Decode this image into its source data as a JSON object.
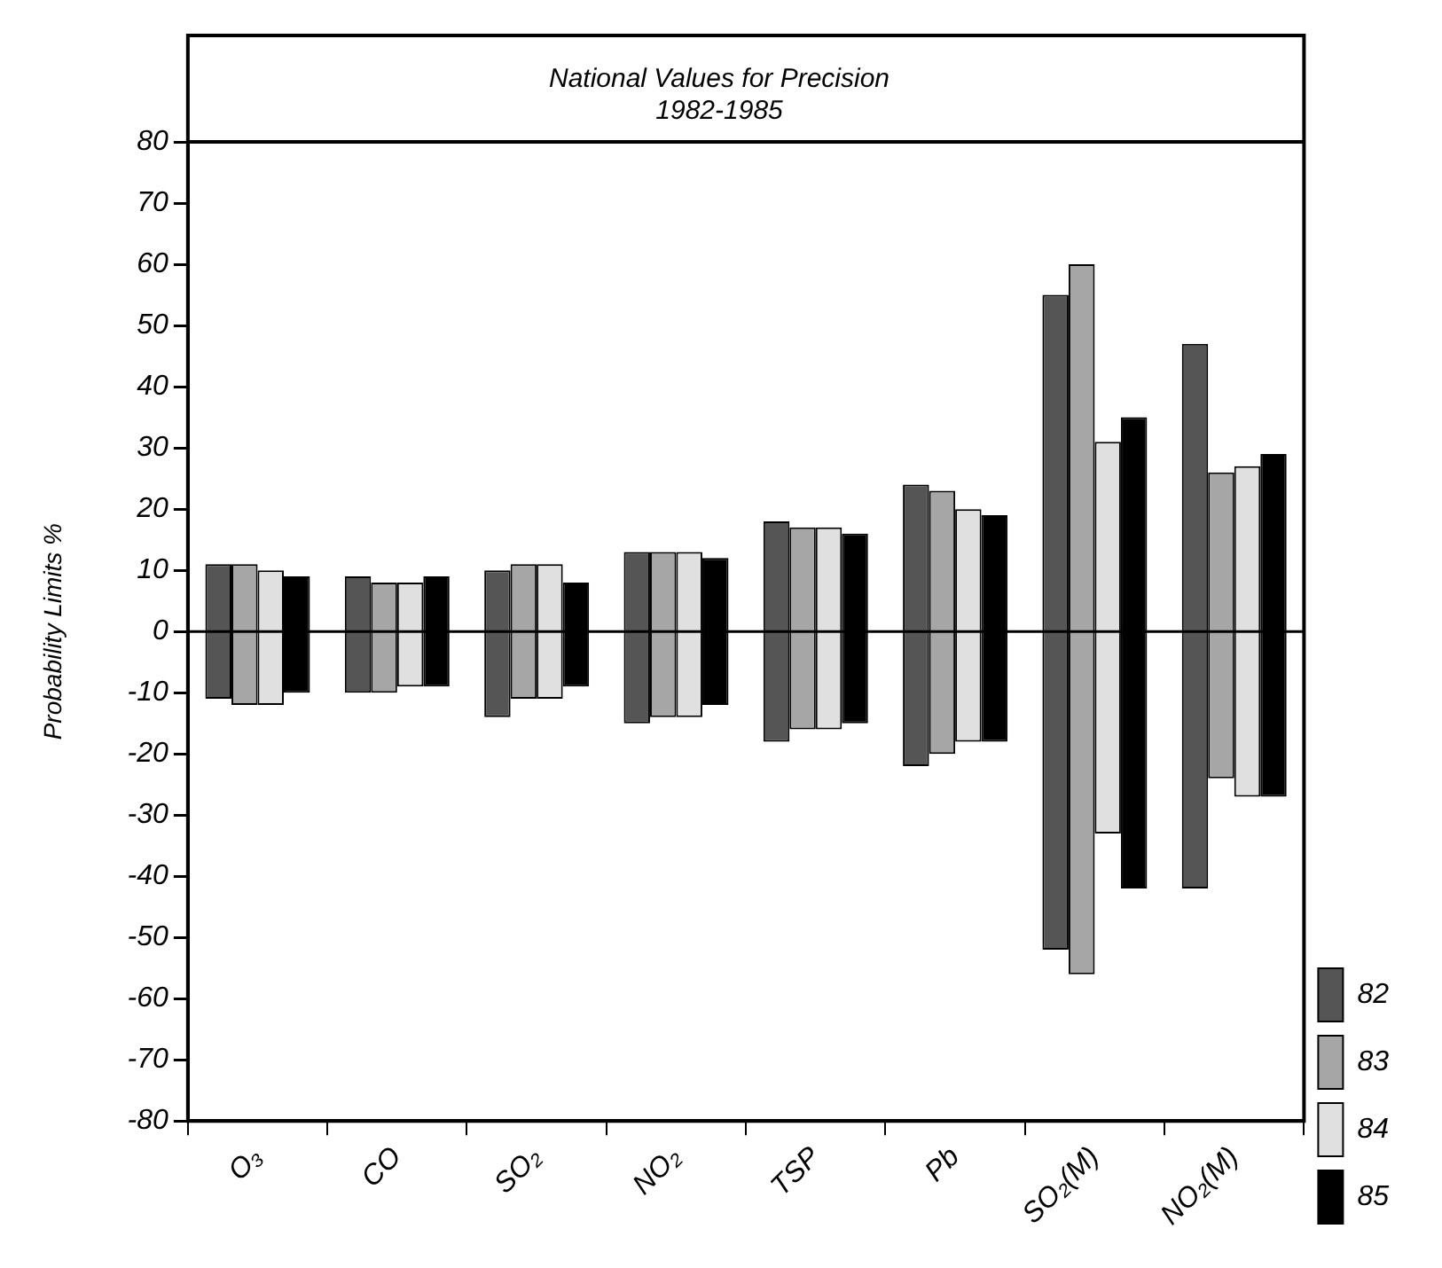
{
  "chart_data": {
    "type": "bar",
    "title": "National Values for Precision\n1982-1985",
    "ylabel": "Probability Limits %",
    "categories": [
      "O₃",
      "CO",
      "SO₂",
      "NO₂",
      "TSP",
      "Pb",
      "SO₂(M)",
      "NO₂(M)"
    ],
    "series": [
      {
        "name": "82",
        "color": "#555555",
        "base": [
          -11,
          -10,
          -14,
          -15,
          -18,
          -22,
          -52,
          -42
        ],
        "values": [
          22,
          19,
          24,
          28,
          36,
          46,
          107,
          89
        ]
      },
      {
        "name": "83",
        "color": "#a6a6a6",
        "base": [
          -12,
          -10,
          -11,
          -14,
          -16,
          -20,
          -56,
          -24
        ],
        "values": [
          23,
          18,
          22,
          27,
          33,
          43,
          116,
          50
        ]
      },
      {
        "name": "84",
        "color": "#e0e0e0",
        "base": [
          -12,
          -9,
          -11,
          -14,
          -16,
          -18,
          -33,
          -27
        ],
        "values": [
          22,
          17,
          22,
          27,
          33,
          38,
          64,
          54
        ]
      },
      {
        "name": "85",
        "color": "#000000",
        "base": [
          -10,
          -9,
          -9,
          -12,
          -15,
          -18,
          -42,
          -27
        ],
        "values": [
          19,
          18,
          17,
          24,
          31,
          37,
          77,
          56
        ]
      }
    ],
    "ylim": [
      -80,
      80
    ],
    "yticks": [
      -80,
      -70,
      -60,
      -50,
      -40,
      -30,
      -20,
      -10,
      0,
      10,
      20,
      30,
      40,
      50,
      60,
      70,
      80
    ],
    "ref_lines": [
      {
        "axis": "y",
        "value": 0,
        "color": "#000000"
      }
    ],
    "grid": false,
    "legend": "bottom right"
  }
}
